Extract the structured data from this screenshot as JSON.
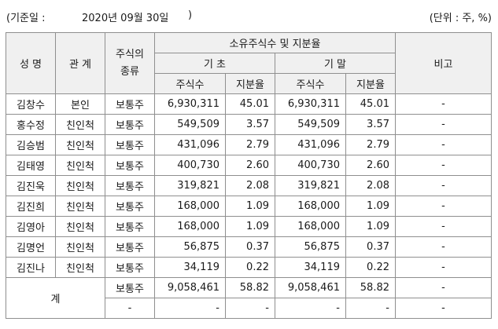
{
  "header": {
    "base_date_label": "(기준일 :",
    "base_date_value": "2020년 09월 30일",
    "base_date_close": ")",
    "unit": "(단위 : 주, %)"
  },
  "table": {
    "col_name": "성 명",
    "col_relation": "관 계",
    "col_stock_type": "주식의\n종류",
    "group_title": "소유주식수 및 지분율",
    "sub_begin": "기 초",
    "sub_end": "기 말",
    "col_shares": "주식수",
    "col_ratio": "지분율",
    "col_note": "비고",
    "rows": [
      {
        "name": "김창수",
        "relation": "본인",
        "type": "보통주",
        "begin_shares": "6,930,311",
        "begin_ratio": "45.01",
        "end_shares": "6,930,311",
        "end_ratio": "45.01",
        "note": "-"
      },
      {
        "name": "홍수정",
        "relation": "친인척",
        "type": "보통주",
        "begin_shares": "549,509",
        "begin_ratio": "3.57",
        "end_shares": "549,509",
        "end_ratio": "3.57",
        "note": "-"
      },
      {
        "name": "김승범",
        "relation": "친인척",
        "type": "보통주",
        "begin_shares": "431,096",
        "begin_ratio": "2.79",
        "end_shares": "431,096",
        "end_ratio": "2.79",
        "note": "-"
      },
      {
        "name": "김태영",
        "relation": "친인척",
        "type": "보통주",
        "begin_shares": "400,730",
        "begin_ratio": "2.60",
        "end_shares": "400,730",
        "end_ratio": "2.60",
        "note": "-"
      },
      {
        "name": "김진욱",
        "relation": "친인척",
        "type": "보통주",
        "begin_shares": "319,821",
        "begin_ratio": "2.08",
        "end_shares": "319,821",
        "end_ratio": "2.08",
        "note": "-"
      },
      {
        "name": "김진희",
        "relation": "친인척",
        "type": "보통주",
        "begin_shares": "168,000",
        "begin_ratio": "1.09",
        "end_shares": "168,000",
        "end_ratio": "1.09",
        "note": "-"
      },
      {
        "name": "김영아",
        "relation": "친인척",
        "type": "보통주",
        "begin_shares": "168,000",
        "begin_ratio": "1.09",
        "end_shares": "168,000",
        "end_ratio": "1.09",
        "note": "-"
      },
      {
        "name": "김명언",
        "relation": "친인척",
        "type": "보통주",
        "begin_shares": "56,875",
        "begin_ratio": "0.37",
        "end_shares": "56,875",
        "end_ratio": "0.37",
        "note": "-"
      },
      {
        "name": "김진나",
        "relation": "친인척",
        "type": "보통주",
        "begin_shares": "34,119",
        "begin_ratio": "0.22",
        "end_shares": "34,119",
        "end_ratio": "0.22",
        "note": "-"
      }
    ],
    "total_label": "계",
    "totals": [
      {
        "type": "보통주",
        "begin_shares": "9,058,461",
        "begin_ratio": "58.82",
        "end_shares": "9,058,461",
        "end_ratio": "58.82",
        "note": "-"
      },
      {
        "type": "-",
        "begin_shares": "-",
        "begin_ratio": "-",
        "end_shares": "-",
        "end_ratio": "-",
        "note": "-"
      }
    ]
  }
}
